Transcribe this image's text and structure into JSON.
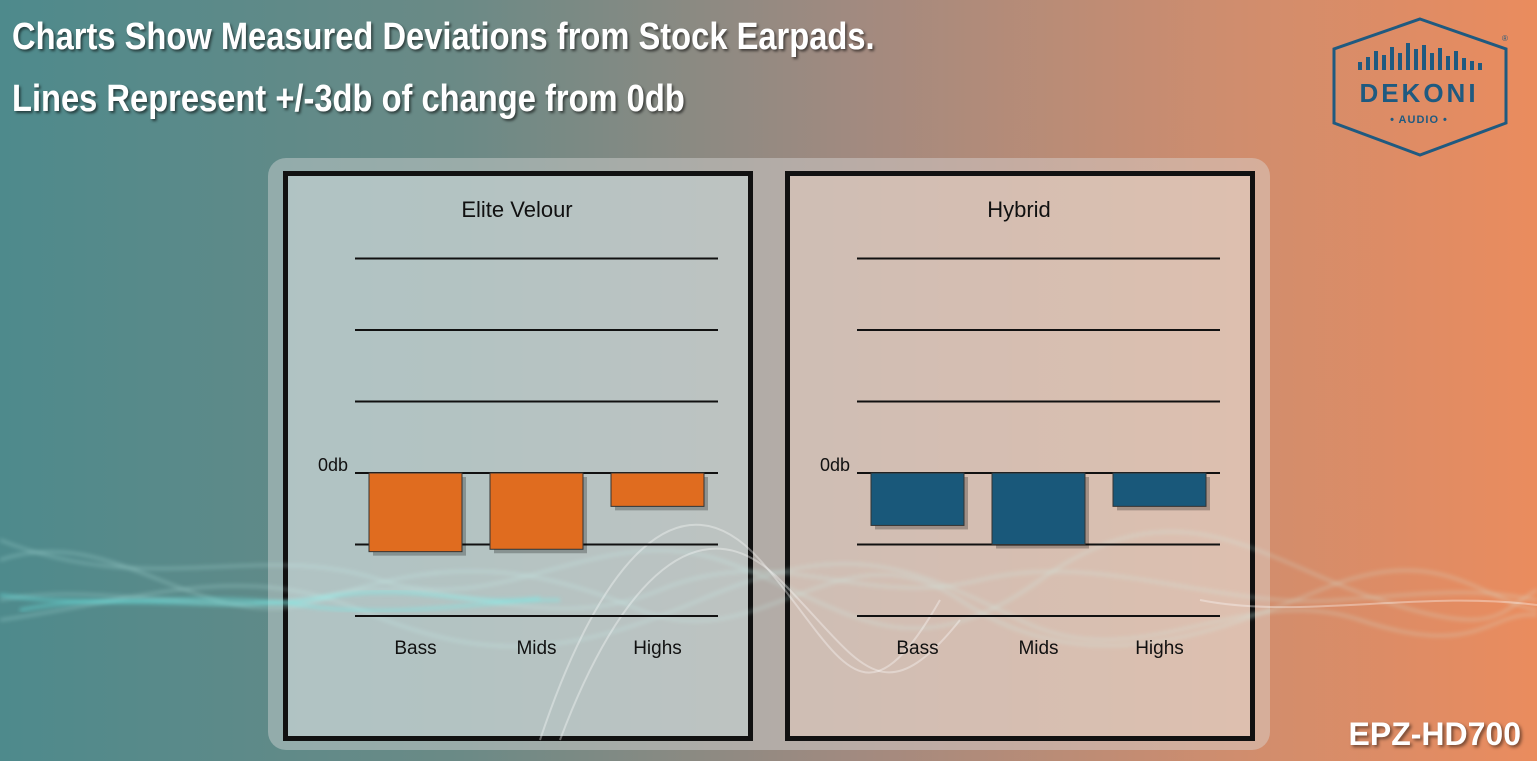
{
  "headline": {
    "line1": "Charts Show Measured Deviations from Stock Earpads.",
    "line2": "Lines Represent +/-3db of change from 0db"
  },
  "logo": {
    "name": "DEKONI",
    "subtitle": "• AUDIO •",
    "registered": "®"
  },
  "footer": {
    "model": "EPZ-HD700"
  },
  "chart_data": [
    {
      "type": "bar",
      "title": "Elite Velour",
      "categories": [
        "Bass",
        "Mids",
        "Highs"
      ],
      "values": [
        -3.3,
        -3.2,
        -1.4
      ],
      "zero_label": "0db",
      "gridlines": [
        9,
        6,
        3,
        0,
        -3,
        -6
      ],
      "ylim": [
        -6,
        9
      ],
      "color": "#e06c1f"
    },
    {
      "type": "bar",
      "title": "Hybrid",
      "categories": [
        "Bass",
        "Mids",
        "Highs"
      ],
      "values": [
        -2.2,
        -3.0,
        -1.4
      ],
      "zero_label": "0db",
      "gridlines": [
        9,
        6,
        3,
        0,
        -3,
        -6
      ],
      "ylim": [
        -6,
        9
      ],
      "color": "#19587a"
    }
  ]
}
